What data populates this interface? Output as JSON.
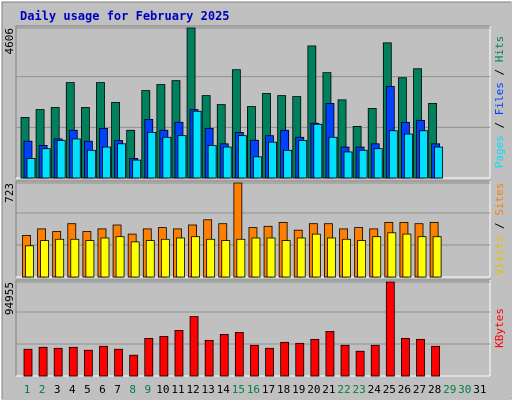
{
  "chart_data": [
    {
      "type": "bar",
      "title": "Daily usage for February 2025",
      "ylim": [
        0,
        4606
      ],
      "yticks": [
        4606
      ],
      "grid": true,
      "legend_separator": " / ",
      "series": [
        {
          "name": "Hits",
          "color": "#00805c",
          "values": [
            1860,
            2100,
            2165,
            2930,
            2165,
            2930,
            2320,
            1465,
            2685,
            2870,
            2990,
            4606,
            2530,
            2255,
            3325,
            2195,
            2595,
            2530,
            2500,
            4055,
            3235,
            2400,
            1585,
            2135,
            4150,
            3080,
            3355,
            2290,
            null,
            null,
            null
          ]
        },
        {
          "name": "Files",
          "color": "#0040ff",
          "values": [
            1130,
            1000,
            1200,
            1465,
            1130,
            1525,
            1150,
            600,
            1800,
            1465,
            1710,
            2100,
            1525,
            1050,
            1400,
            1160,
            1300,
            1465,
            1250,
            1680,
            2290,
            950,
            950,
            1050,
            2810,
            1710,
            1770,
            1050,
            null,
            null,
            null
          ]
        },
        {
          "name": "Pages",
          "color": "#00e0ff",
          "values": [
            600,
            900,
            1150,
            1200,
            850,
            950,
            1050,
            550,
            1400,
            1250,
            1300,
            2050,
            1000,
            950,
            1300,
            650,
            1100,
            850,
            1150,
            1650,
            1250,
            800,
            850,
            900,
            1450,
            1350,
            1450,
            950,
            null,
            null,
            null
          ]
        }
      ]
    },
    {
      "type": "bar",
      "ylim": [
        0,
        723
      ],
      "yticks": [
        723
      ],
      "grid": true,
      "legend_separator": " / ",
      "series": [
        {
          "name": "Sites",
          "color": "#ff8000",
          "values": [
            320,
            370,
            350,
            410,
            350,
            370,
            400,
            330,
            370,
            380,
            370,
            400,
            440,
            410,
            723,
            380,
            390,
            420,
            360,
            410,
            410,
            370,
            380,
            370,
            420,
            420,
            410,
            420,
            null,
            null,
            null
          ]
        },
        {
          "name": "Visits",
          "color": "#ffff00",
          "values": [
            240,
            280,
            290,
            290,
            280,
            300,
            310,
            270,
            280,
            290,
            300,
            310,
            290,
            280,
            290,
            300,
            300,
            280,
            300,
            330,
            300,
            290,
            280,
            310,
            340,
            330,
            310,
            310,
            null,
            null,
            null
          ]
        }
      ]
    },
    {
      "type": "bar",
      "ylim": [
        0,
        94955
      ],
      "yticks": [
        94955
      ],
      "grid": true,
      "legend_separator": " / ",
      "categories": [
        "1",
        "2",
        "3",
        "4",
        "5",
        "6",
        "7",
        "8",
        "9",
        "10",
        "11",
        "12",
        "13",
        "14",
        "15",
        "16",
        "17",
        "18",
        "19",
        "20",
        "21",
        "22",
        "23",
        "24",
        "25",
        "26",
        "27",
        "28",
        "29",
        "30",
        "31"
      ],
      "weekend_color": "#008040",
      "weekends": [
        0,
        1,
        7,
        8,
        14,
        15,
        21,
        22,
        28,
        29
      ],
      "series": [
        {
          "name": "KBytes",
          "color": "#ff0000",
          "values": [
            27000,
            29000,
            28000,
            29000,
            26000,
            30000,
            27000,
            21000,
            38000,
            40000,
            46000,
            60000,
            36000,
            42000,
            44000,
            31000,
            28000,
            34000,
            33000,
            37000,
            45000,
            31000,
            25000,
            31000,
            94955,
            38000,
            37000,
            30000,
            null,
            null,
            null
          ]
        }
      ]
    }
  ]
}
